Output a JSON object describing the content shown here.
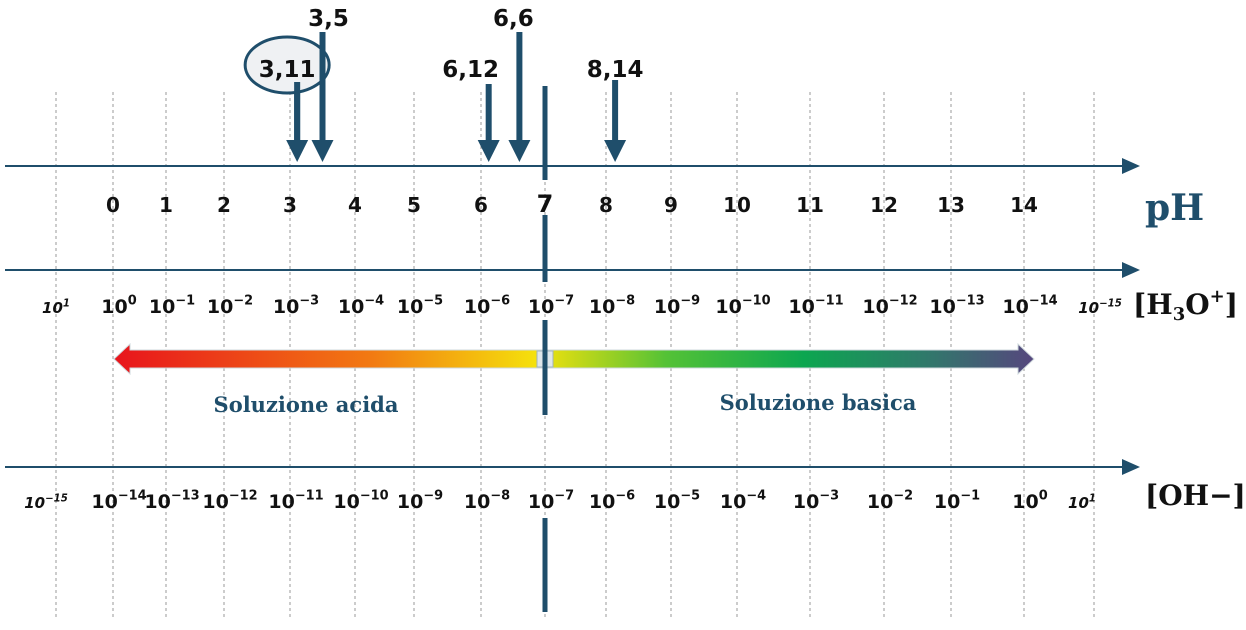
{
  "colors": {
    "axis": "#1f4e6b",
    "marker": "#1f4e6b",
    "text": "#111111",
    "neutral": "#1f4e6b",
    "gradient": [
      "#e8141c",
      "#f27a12",
      "#f5e20c",
      "#54c236",
      "#0ca650",
      "#2f7a6a",
      "#56467e"
    ]
  },
  "axes": {
    "ph_label": "pH",
    "h3o_label": "[H3O+]",
    "oh_label": "[OH−]"
  },
  "ph_ticks": [
    "0",
    "1",
    "2",
    "3",
    "4",
    "5",
    "6",
    "7",
    "8",
    "9",
    "10",
    "11",
    "12",
    "13",
    "14"
  ],
  "h3o_left_extra": {
    "base": "10",
    "exp": "1"
  },
  "h3o_right_extra": {
    "base": "10",
    "exp": "−15"
  },
  "h3o_ticks": [
    {
      "base": "10",
      "exp": "0"
    },
    {
      "base": "10",
      "exp": "−1"
    },
    {
      "base": "10",
      "exp": "−2"
    },
    {
      "base": "10",
      "exp": "−3"
    },
    {
      "base": "10",
      "exp": "−4"
    },
    {
      "base": "10",
      "exp": "−5"
    },
    {
      "base": "10",
      "exp": "−6"
    },
    {
      "base": "10",
      "exp": "−7"
    },
    {
      "base": "10",
      "exp": "−8"
    },
    {
      "base": "10",
      "exp": "−9"
    },
    {
      "base": "10",
      "exp": "−10"
    },
    {
      "base": "10",
      "exp": "−11"
    },
    {
      "base": "10",
      "exp": "−12"
    },
    {
      "base": "10",
      "exp": "−13"
    },
    {
      "base": "10",
      "exp": "−14"
    }
  ],
  "oh_left_extra": {
    "base": "10",
    "exp": "−15"
  },
  "oh_right_extra": {
    "base": "10",
    "exp": "1"
  },
  "oh_ticks": [
    {
      "base": "10",
      "exp": "−14"
    },
    {
      "base": "10",
      "exp": "−13"
    },
    {
      "base": "10",
      "exp": "−12"
    },
    {
      "base": "10",
      "exp": "−11"
    },
    {
      "base": "10",
      "exp": "−10"
    },
    {
      "base": "10",
      "exp": "−9"
    },
    {
      "base": "10",
      "exp": "−8"
    },
    {
      "base": "10",
      "exp": "−7"
    },
    {
      "base": "10",
      "exp": "−6"
    },
    {
      "base": "10",
      "exp": "−5"
    },
    {
      "base": "10",
      "exp": "−4"
    },
    {
      "base": "10",
      "exp": "−3"
    },
    {
      "base": "10",
      "exp": "−2"
    },
    {
      "base": "10",
      "exp": "−1"
    },
    {
      "base": "10",
      "exp": "0"
    }
  ],
  "regions": {
    "acid": "Soluzione acida",
    "base": "Soluzione basica"
  },
  "markers": [
    {
      "label": "3,11",
      "ph": 3.11,
      "circled": true
    },
    {
      "label": "3,5",
      "ph": 3.5,
      "circled": false
    },
    {
      "label": "6,12",
      "ph": 6.12,
      "circled": false
    },
    {
      "label": "6,6",
      "ph": 6.6,
      "circled": false
    },
    {
      "label": "8,14",
      "ph": 8.14,
      "circled": false
    }
  ],
  "highlight_ph": "7"
}
